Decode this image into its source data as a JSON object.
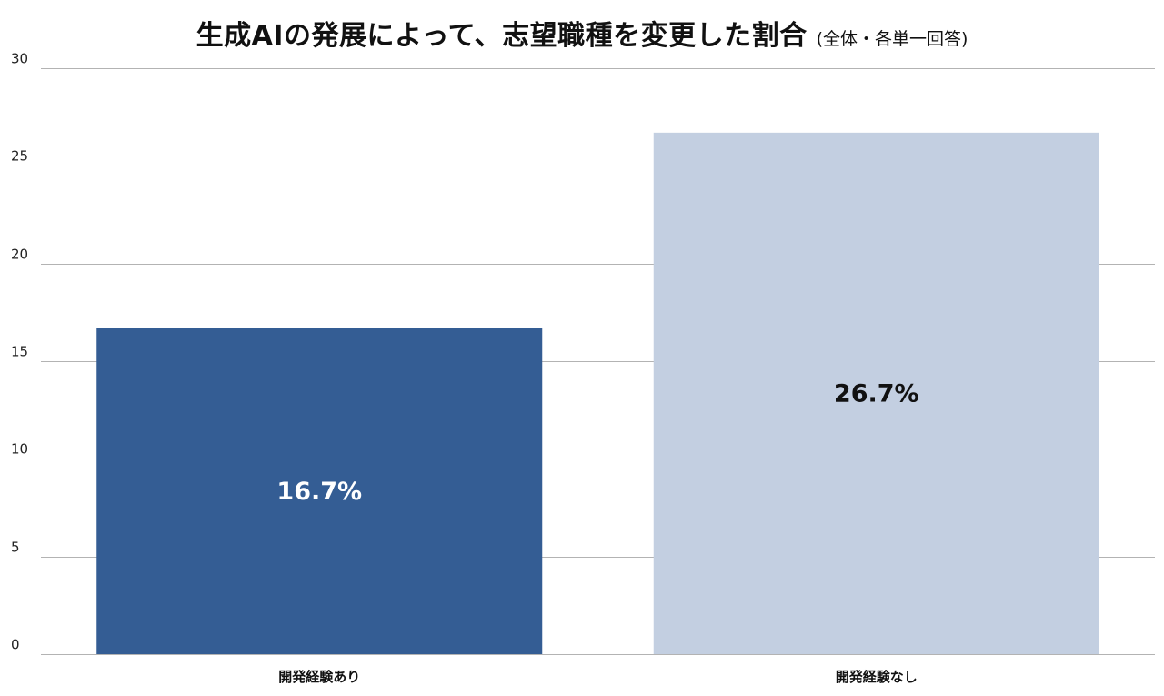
{
  "chart_data": {
    "type": "bar",
    "title": "生成AIの発展によって、志望職種を変更した割合",
    "subtitle": "(全体・各単一回答)",
    "categories": [
      "開発経験あり",
      "開発経験なし"
    ],
    "values": [
      16.7,
      26.7
    ],
    "data_labels": [
      "16.7%",
      "26.7%"
    ],
    "colors": [
      "#345d94",
      "#c3cfe1"
    ],
    "label_colors": [
      "#ffffff",
      "#111111"
    ],
    "ylim": [
      0,
      30
    ],
    "yticks": [
      0,
      5,
      10,
      15,
      20,
      25,
      30
    ],
    "grid": true,
    "legend": "none"
  }
}
